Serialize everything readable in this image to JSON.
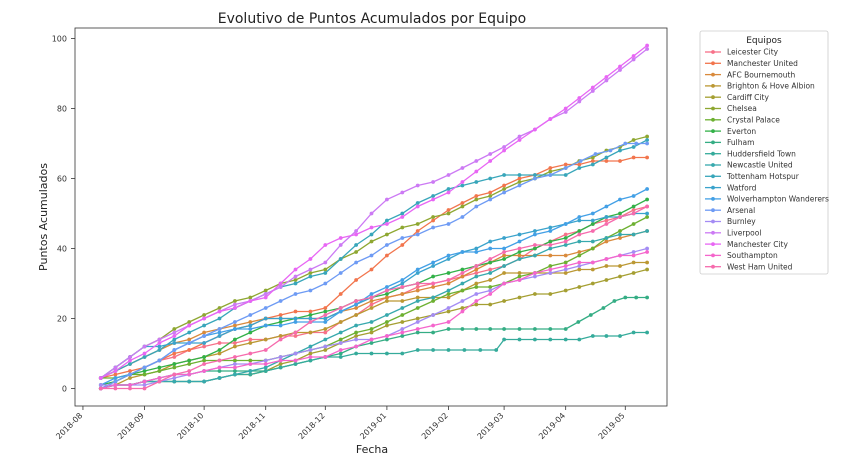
{
  "chart_data": {
    "type": "line",
    "title": "Evolutivo de Puntos Acumulados por Equipo",
    "xlabel": "Fecha",
    "ylabel": "Puntos Acumulados",
    "xlim": [
      "2018-07-28",
      "2019-05-22"
    ],
    "ylim": [
      -5,
      103
    ],
    "yticks": [
      0,
      20,
      40,
      60,
      80,
      100
    ],
    "xticks": [
      "2018-08",
      "2018-09",
      "2018-10",
      "2018-11",
      "2018-12",
      "2019-01",
      "2019-02",
      "2019-03",
      "2019-04",
      "2019-05"
    ],
    "grid": false,
    "legend": {
      "title": "Equipos",
      "position": "right-outside"
    },
    "series": [
      {
        "name": "Leicester City",
        "color": "#f77189",
        "points": [
          [
            "2018-08-10",
            0
          ],
          [
            "2018-09-01",
            6
          ],
          [
            "2018-10-01",
            12
          ],
          [
            "2018-11-01",
            14
          ],
          [
            "2018-12-01",
            16
          ],
          [
            "2019-01-01",
            26
          ],
          [
            "2019-02-01",
            31
          ],
          [
            "2019-03-01",
            35
          ],
          [
            "2019-04-01",
            44
          ],
          [
            "2019-05-12",
            52
          ]
        ]
      },
      {
        "name": "Manchester United",
        "color": "#f2754d",
        "points": [
          [
            "2018-08-10",
            3
          ],
          [
            "2018-09-01",
            6
          ],
          [
            "2018-10-01",
            13
          ],
          [
            "2018-11-01",
            20
          ],
          [
            "2018-12-01",
            23
          ],
          [
            "2019-01-01",
            38
          ],
          [
            "2019-02-01",
            51
          ],
          [
            "2019-03-01",
            58
          ],
          [
            "2019-04-01",
            64
          ],
          [
            "2019-05-12",
            66
          ]
        ]
      },
      {
        "name": "AFC Bournemouth",
        "color": "#d98a3c",
        "points": [
          [
            "2018-08-10",
            3
          ],
          [
            "2018-09-01",
            9
          ],
          [
            "2018-10-01",
            16
          ],
          [
            "2018-11-01",
            20
          ],
          [
            "2018-12-01",
            20
          ],
          [
            "2019-01-01",
            26
          ],
          [
            "2019-02-01",
            30
          ],
          [
            "2019-03-01",
            38
          ],
          [
            "2019-04-01",
            38
          ],
          [
            "2019-05-12",
            45
          ]
        ]
      },
      {
        "name": "Brighton & Hove Albion",
        "color": "#bb9833",
        "points": [
          [
            "2018-08-10",
            0
          ],
          [
            "2018-09-01",
            4
          ],
          [
            "2018-10-01",
            9
          ],
          [
            "2018-11-01",
            14
          ],
          [
            "2018-12-01",
            17
          ],
          [
            "2019-01-01",
            25
          ],
          [
            "2019-02-01",
            26
          ],
          [
            "2019-03-01",
            33
          ],
          [
            "2019-04-01",
            33
          ],
          [
            "2019-05-12",
            36
          ]
        ]
      },
      {
        "name": "Cardiff City",
        "color": "#a59f32",
        "points": [
          [
            "2018-08-10",
            0
          ],
          [
            "2018-09-01",
            2
          ],
          [
            "2018-10-01",
            2
          ],
          [
            "2018-11-01",
            5
          ],
          [
            "2018-12-01",
            11
          ],
          [
            "2019-01-01",
            18
          ],
          [
            "2019-02-01",
            22
          ],
          [
            "2019-03-01",
            25
          ],
          [
            "2019-04-01",
            28
          ],
          [
            "2019-05-12",
            34
          ]
        ]
      },
      {
        "name": "Chelsea",
        "color": "#8ea731",
        "points": [
          [
            "2018-08-10",
            3
          ],
          [
            "2018-09-01",
            12
          ],
          [
            "2018-10-01",
            21
          ],
          [
            "2018-11-01",
            28
          ],
          [
            "2018-12-01",
            34
          ],
          [
            "2019-01-01",
            44
          ],
          [
            "2019-02-01",
            50
          ],
          [
            "2019-03-01",
            57
          ],
          [
            "2019-04-01",
            63
          ],
          [
            "2019-05-12",
            72
          ]
        ]
      },
      {
        "name": "Crystal Palace",
        "color": "#6db031",
        "points": [
          [
            "2018-08-10",
            3
          ],
          [
            "2018-09-01",
            4
          ],
          [
            "2018-10-01",
            8
          ],
          [
            "2018-11-01",
            8
          ],
          [
            "2018-12-01",
            12
          ],
          [
            "2019-01-01",
            19
          ],
          [
            "2019-02-01",
            27
          ],
          [
            "2019-03-01",
            30
          ],
          [
            "2019-04-01",
            36
          ],
          [
            "2019-05-12",
            49
          ]
        ]
      },
      {
        "name": "Everton",
        "color": "#32b148",
        "points": [
          [
            "2018-08-10",
            1
          ],
          [
            "2018-09-01",
            5
          ],
          [
            "2018-10-01",
            9
          ],
          [
            "2018-11-01",
            18
          ],
          [
            "2018-12-01",
            22
          ],
          [
            "2019-01-01",
            27
          ],
          [
            "2019-02-01",
            33
          ],
          [
            "2019-03-01",
            37
          ],
          [
            "2019-04-01",
            43
          ],
          [
            "2019-05-12",
            54
          ]
        ]
      },
      {
        "name": "Fulham",
        "color": "#34ad84",
        "points": [
          [
            "2018-08-10",
            0
          ],
          [
            "2018-09-01",
            2
          ],
          [
            "2018-10-01",
            5
          ],
          [
            "2018-11-01",
            5
          ],
          [
            "2018-12-01",
            9
          ],
          [
            "2019-01-01",
            14
          ],
          [
            "2019-02-01",
            17
          ],
          [
            "2019-03-01",
            17
          ],
          [
            "2019-04-01",
            17
          ],
          [
            "2019-04-20",
            23
          ],
          [
            "2019-05-01",
            26
          ],
          [
            "2019-05-12",
            26
          ]
        ]
      },
      {
        "name": "Huddersfield Town",
        "color": "#35ab9b",
        "points": [
          [
            "2018-08-10",
            0
          ],
          [
            "2018-09-01",
            2
          ],
          [
            "2018-10-01",
            2
          ],
          [
            "2018-11-01",
            5
          ],
          [
            "2018-12-01",
            9
          ],
          [
            "2019-01-01",
            10
          ],
          [
            "2019-02-01",
            11
          ],
          [
            "2019-02-25",
            11
          ],
          [
            "2019-03-01",
            14
          ],
          [
            "2019-04-01",
            14
          ],
          [
            "2019-05-12",
            16
          ]
        ]
      },
      {
        "name": "Newcastle United",
        "color": "#37a9ad",
        "points": [
          [
            "2018-08-10",
            0
          ],
          [
            "2018-09-01",
            2
          ],
          [
            "2018-10-01",
            2
          ],
          [
            "2018-11-01",
            6
          ],
          [
            "2018-12-01",
            14
          ],
          [
            "2019-01-01",
            21
          ],
          [
            "2019-02-01",
            28
          ],
          [
            "2019-03-01",
            35
          ],
          [
            "2019-04-01",
            41
          ],
          [
            "2019-05-12",
            45
          ]
        ]
      },
      {
        "name": "Tottenham Hotspur",
        "color": "#38a6ba",
        "points": [
          [
            "2018-08-10",
            3
          ],
          [
            "2018-09-01",
            9
          ],
          [
            "2018-10-01",
            18
          ],
          [
            "2018-11-01",
            27
          ],
          [
            "2018-12-01",
            33
          ],
          [
            "2019-01-01",
            48
          ],
          [
            "2019-02-01",
            57
          ],
          [
            "2019-03-01",
            61
          ],
          [
            "2019-04-01",
            61
          ],
          [
            "2019-05-12",
            71
          ]
        ]
      },
      {
        "name": "Watford",
        "color": "#3aa3cc",
        "points": [
          [
            "2018-08-10",
            3
          ],
          [
            "2018-09-01",
            12
          ],
          [
            "2018-10-01",
            13
          ],
          [
            "2018-11-01",
            20
          ],
          [
            "2018-12-01",
            20
          ],
          [
            "2019-01-01",
            28
          ],
          [
            "2019-02-01",
            37
          ],
          [
            "2019-03-01",
            43
          ],
          [
            "2019-04-01",
            47
          ],
          [
            "2019-05-12",
            50
          ]
        ]
      },
      {
        "name": "Wolverhampton Wanderers",
        "color": "#43a0e6",
        "points": [
          [
            "2018-08-10",
            1
          ],
          [
            "2018-09-01",
            6
          ],
          [
            "2018-10-01",
            15
          ],
          [
            "2018-11-01",
            18
          ],
          [
            "2018-12-01",
            19
          ],
          [
            "2019-01-01",
            29
          ],
          [
            "2019-02-01",
            38
          ],
          [
            "2019-03-01",
            40
          ],
          [
            "2019-04-01",
            47
          ],
          [
            "2019-05-12",
            57
          ]
        ]
      },
      {
        "name": "Arsenal",
        "color": "#6e9bf4",
        "points": [
          [
            "2018-08-10",
            0
          ],
          [
            "2018-09-01",
            6
          ],
          [
            "2018-10-01",
            15
          ],
          [
            "2018-11-01",
            23
          ],
          [
            "2018-12-01",
            30
          ],
          [
            "2019-01-01",
            41
          ],
          [
            "2019-02-01",
            47
          ],
          [
            "2019-03-01",
            56
          ],
          [
            "2019-04-01",
            63
          ],
          [
            "2019-05-01",
            70
          ],
          [
            "2019-05-12",
            70
          ]
        ]
      },
      {
        "name": "Burnley",
        "color": "#a48cf4",
        "points": [
          [
            "2018-08-10",
            1
          ],
          [
            "2018-09-01",
            1
          ],
          [
            "2018-10-01",
            5
          ],
          [
            "2018-11-01",
            8
          ],
          [
            "2018-12-01",
            12
          ],
          [
            "2019-01-01",
            15
          ],
          [
            "2019-02-01",
            23
          ],
          [
            "2019-03-01",
            30
          ],
          [
            "2019-04-01",
            34
          ],
          [
            "2019-05-12",
            40
          ]
        ]
      },
      {
        "name": "Liverpool",
        "color": "#cc7af4",
        "points": [
          [
            "2018-08-10",
            3
          ],
          [
            "2018-09-01",
            12
          ],
          [
            "2018-10-01",
            20
          ],
          [
            "2018-11-01",
            27
          ],
          [
            "2018-12-01",
            36
          ],
          [
            "2019-01-01",
            54
          ],
          [
            "2019-02-01",
            61
          ],
          [
            "2019-03-01",
            69
          ],
          [
            "2019-04-01",
            79
          ],
          [
            "2019-05-12",
            97
          ]
        ]
      },
      {
        "name": "Manchester City",
        "color": "#e866f4",
        "points": [
          [
            "2018-08-10",
            3
          ],
          [
            "2018-09-01",
            10
          ],
          [
            "2018-10-01",
            20
          ],
          [
            "2018-11-01",
            26
          ],
          [
            "2018-12-01",
            41
          ],
          [
            "2019-01-01",
            47
          ],
          [
            "2019-02-01",
            56
          ],
          [
            "2019-03-01",
            68
          ],
          [
            "2019-04-01",
            80
          ],
          [
            "2019-05-12",
            98
          ]
        ]
      },
      {
        "name": "Southampton",
        "color": "#f565cc",
        "points": [
          [
            "2018-08-10",
            0
          ],
          [
            "2018-09-01",
            2
          ],
          [
            "2018-10-01",
            5
          ],
          [
            "2018-11-01",
            7
          ],
          [
            "2018-12-01",
            9
          ],
          [
            "2019-01-01",
            15
          ],
          [
            "2019-02-01",
            19
          ],
          [
            "2019-03-01",
            30
          ],
          [
            "2019-04-01",
            35
          ],
          [
            "2019-05-12",
            39
          ]
        ]
      },
      {
        "name": "West Ham United",
        "color": "#f66bad",
        "points": [
          [
            "2018-08-10",
            0
          ],
          [
            "2018-09-01",
            0
          ],
          [
            "2018-10-01",
            7
          ],
          [
            "2018-11-01",
            11
          ],
          [
            "2018-12-01",
            21
          ],
          [
            "2019-01-01",
            28
          ],
          [
            "2019-02-01",
            31
          ],
          [
            "2019-03-01",
            39
          ],
          [
            "2019-04-01",
            42
          ],
          [
            "2019-05-12",
            52
          ]
        ]
      }
    ]
  }
}
